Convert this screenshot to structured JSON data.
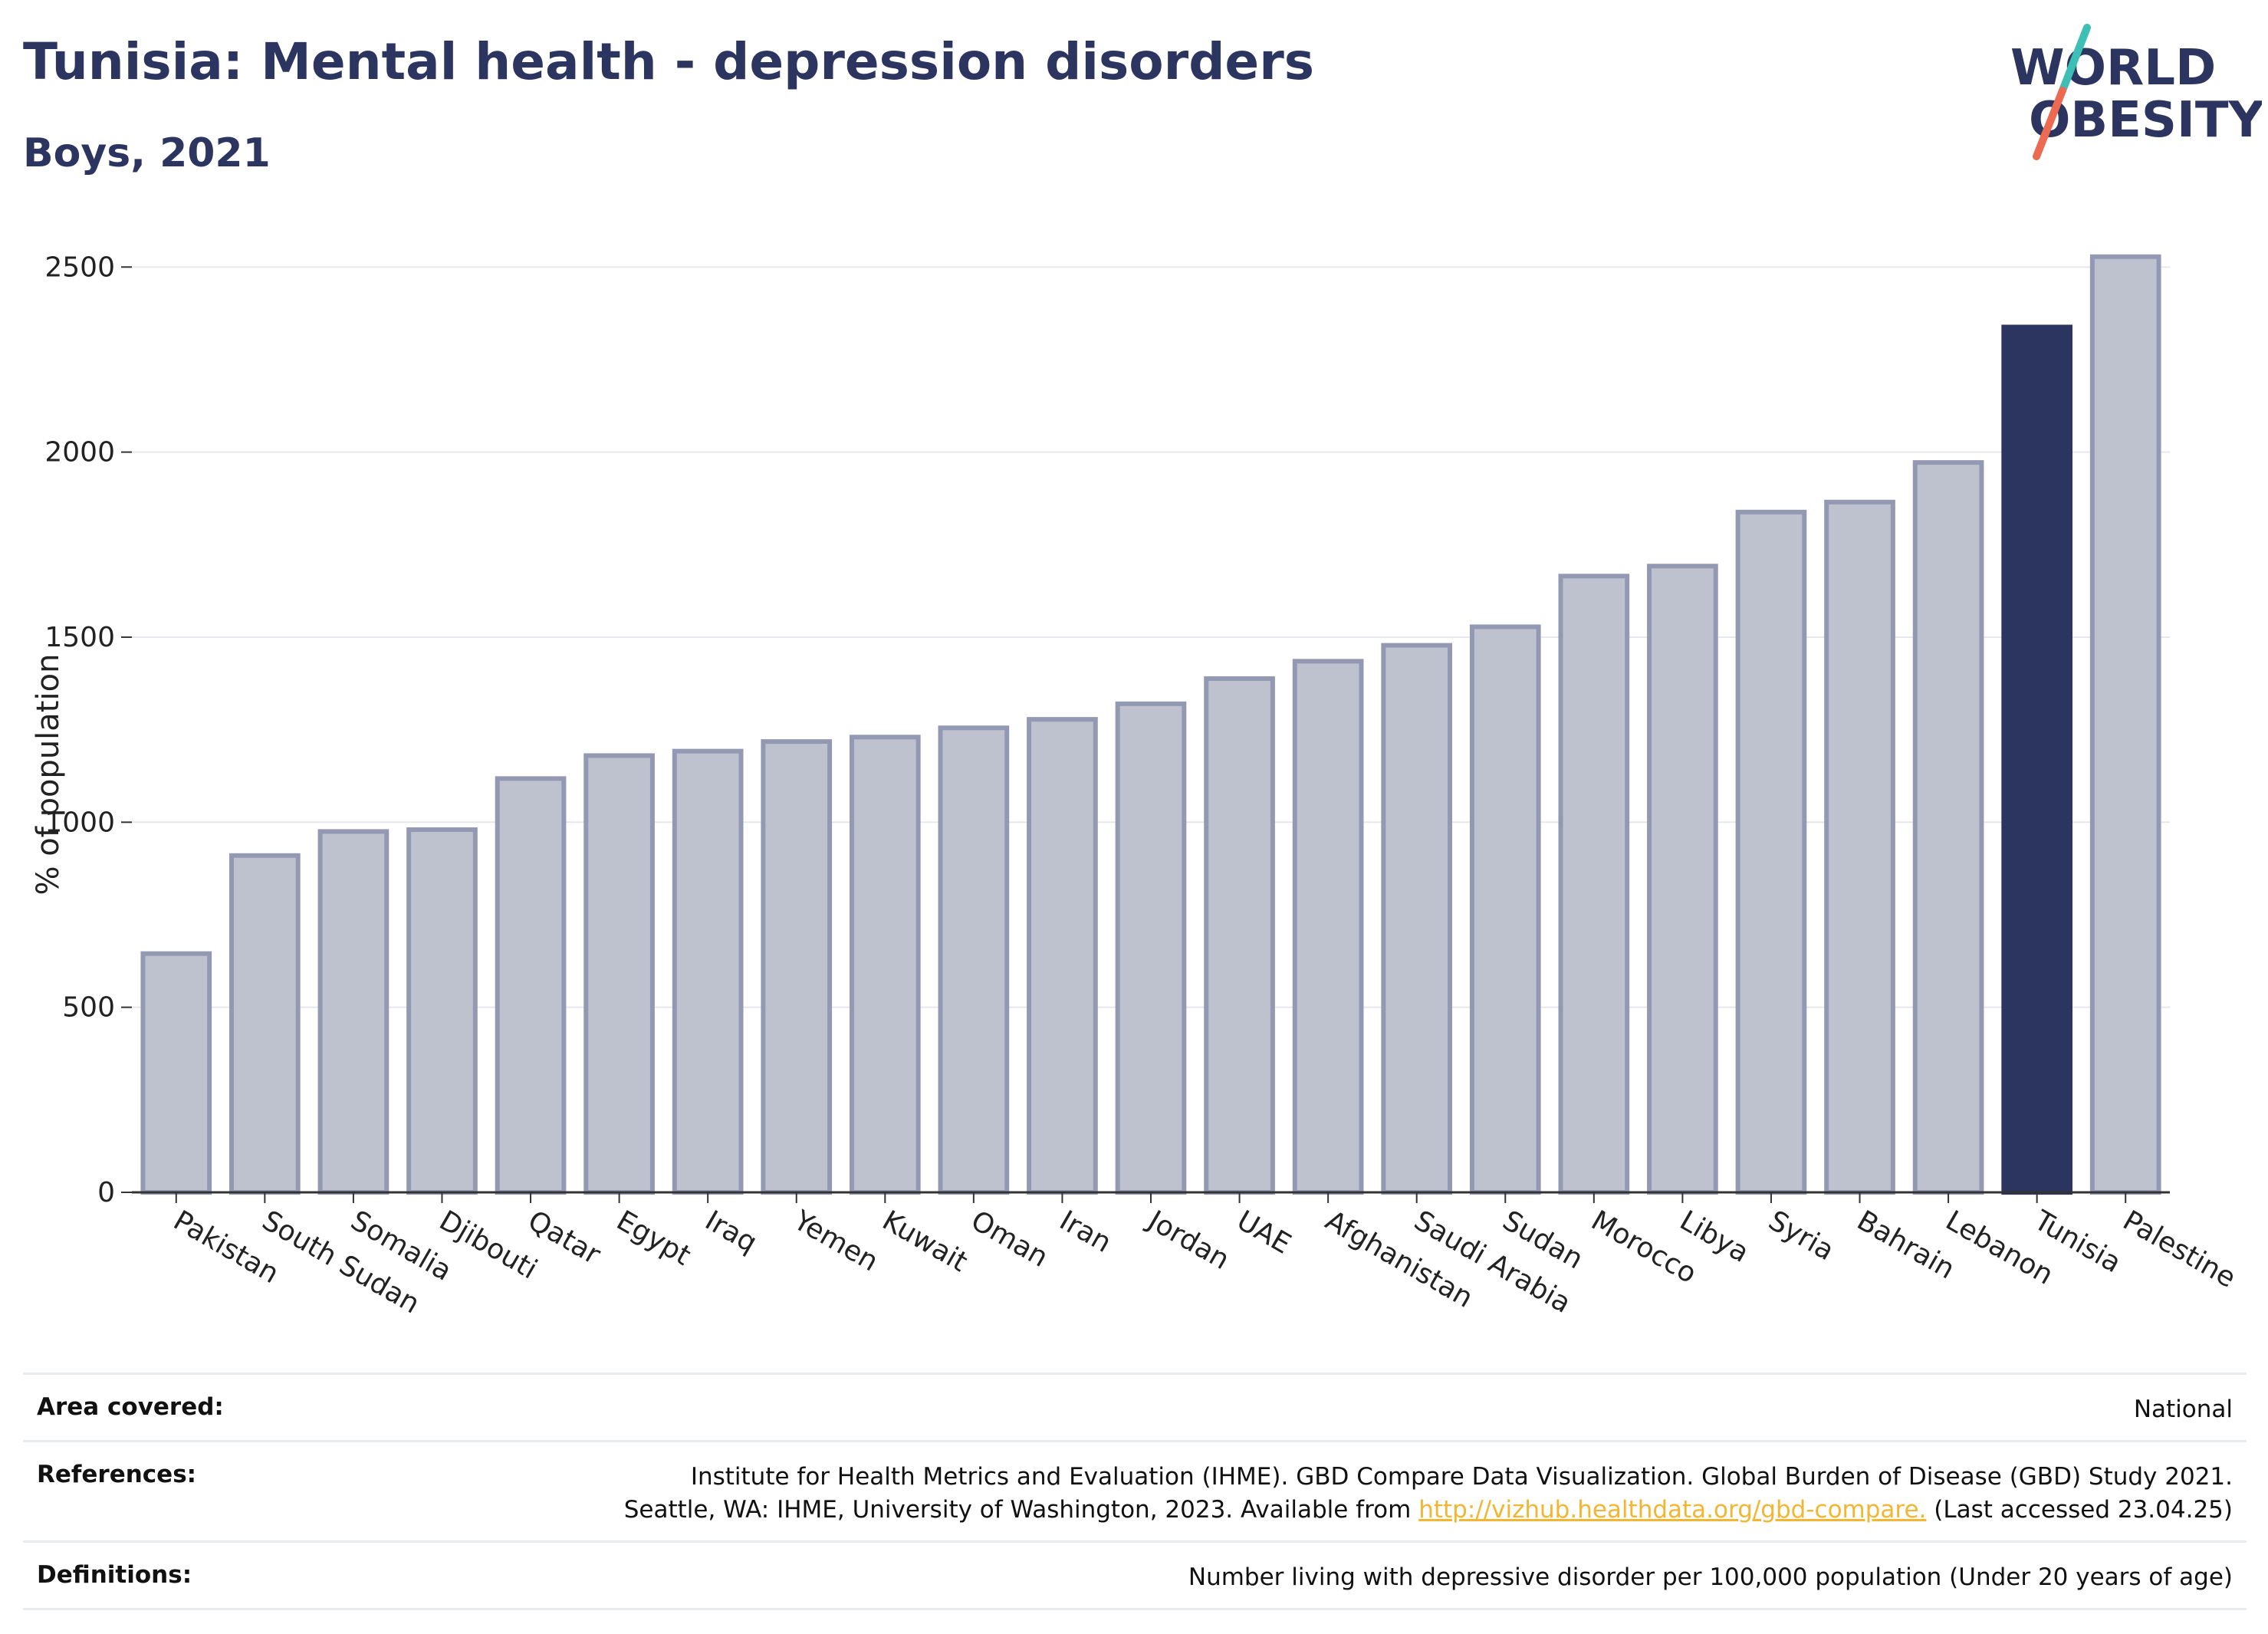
{
  "header": {
    "title": "Tunisia: Mental health - depression disorders",
    "subtitle": "Boys, 2021"
  },
  "logo": {
    "line1": "WORLD",
    "line2": "OBESITY",
    "colors": {
      "text": "#2b3560",
      "slash_top": "#3dbfb5",
      "slash_bottom": "#ec6a52"
    }
  },
  "chart_data": {
    "type": "bar",
    "categories": [
      "Pakistan",
      "South Sudan",
      "Somalia",
      "Djibouti",
      "Qatar",
      "Egypt",
      "Iraq",
      "Yemen",
      "Kuwait",
      "Oman",
      "Iran",
      "Jordan",
      "UAE",
      "Afghanistan",
      "Saudi Arabia",
      "Sudan",
      "Morocco",
      "Libya",
      "Syria",
      "Bahrain",
      "Lebanon",
      "Tunisia",
      "Palestine"
    ],
    "values": [
      645,
      910,
      975,
      980,
      1118,
      1180,
      1192,
      1218,
      1230,
      1255,
      1278,
      1320,
      1388,
      1435,
      1478,
      1528,
      1665,
      1692,
      1838,
      1865,
      1972,
      2338,
      2528
    ],
    "highlight": "Tunisia",
    "ylabel": "% of population",
    "ylim": [
      0,
      2600
    ],
    "yticks": [
      0,
      500,
      1000,
      1500,
      2000,
      2500
    ],
    "grid": true,
    "colors": {
      "bar": "#bec2cf",
      "bar_border": "#9499b3",
      "highlight": "#2b3560"
    }
  },
  "footer": {
    "area_label": "Area covered:",
    "area_value": "National",
    "references_label": "References:",
    "references_line1": "Institute for Health Metrics and Evaluation (IHME). GBD Compare Data Visualization. Global Burden of Disease (GBD) Study 2021.",
    "references_line2_pre": "Seattle, WA: IHME, University of Washington, 2023. Available from ",
    "references_link": "http://vizhub.healthdata.org/gbd-compare.",
    "references_line2_post": " (Last accessed 23.04.25)",
    "definitions_label": "Definitions:",
    "definitions_value": "Number living with depressive disorder per 100,000 population (Under 20 years of age)"
  }
}
